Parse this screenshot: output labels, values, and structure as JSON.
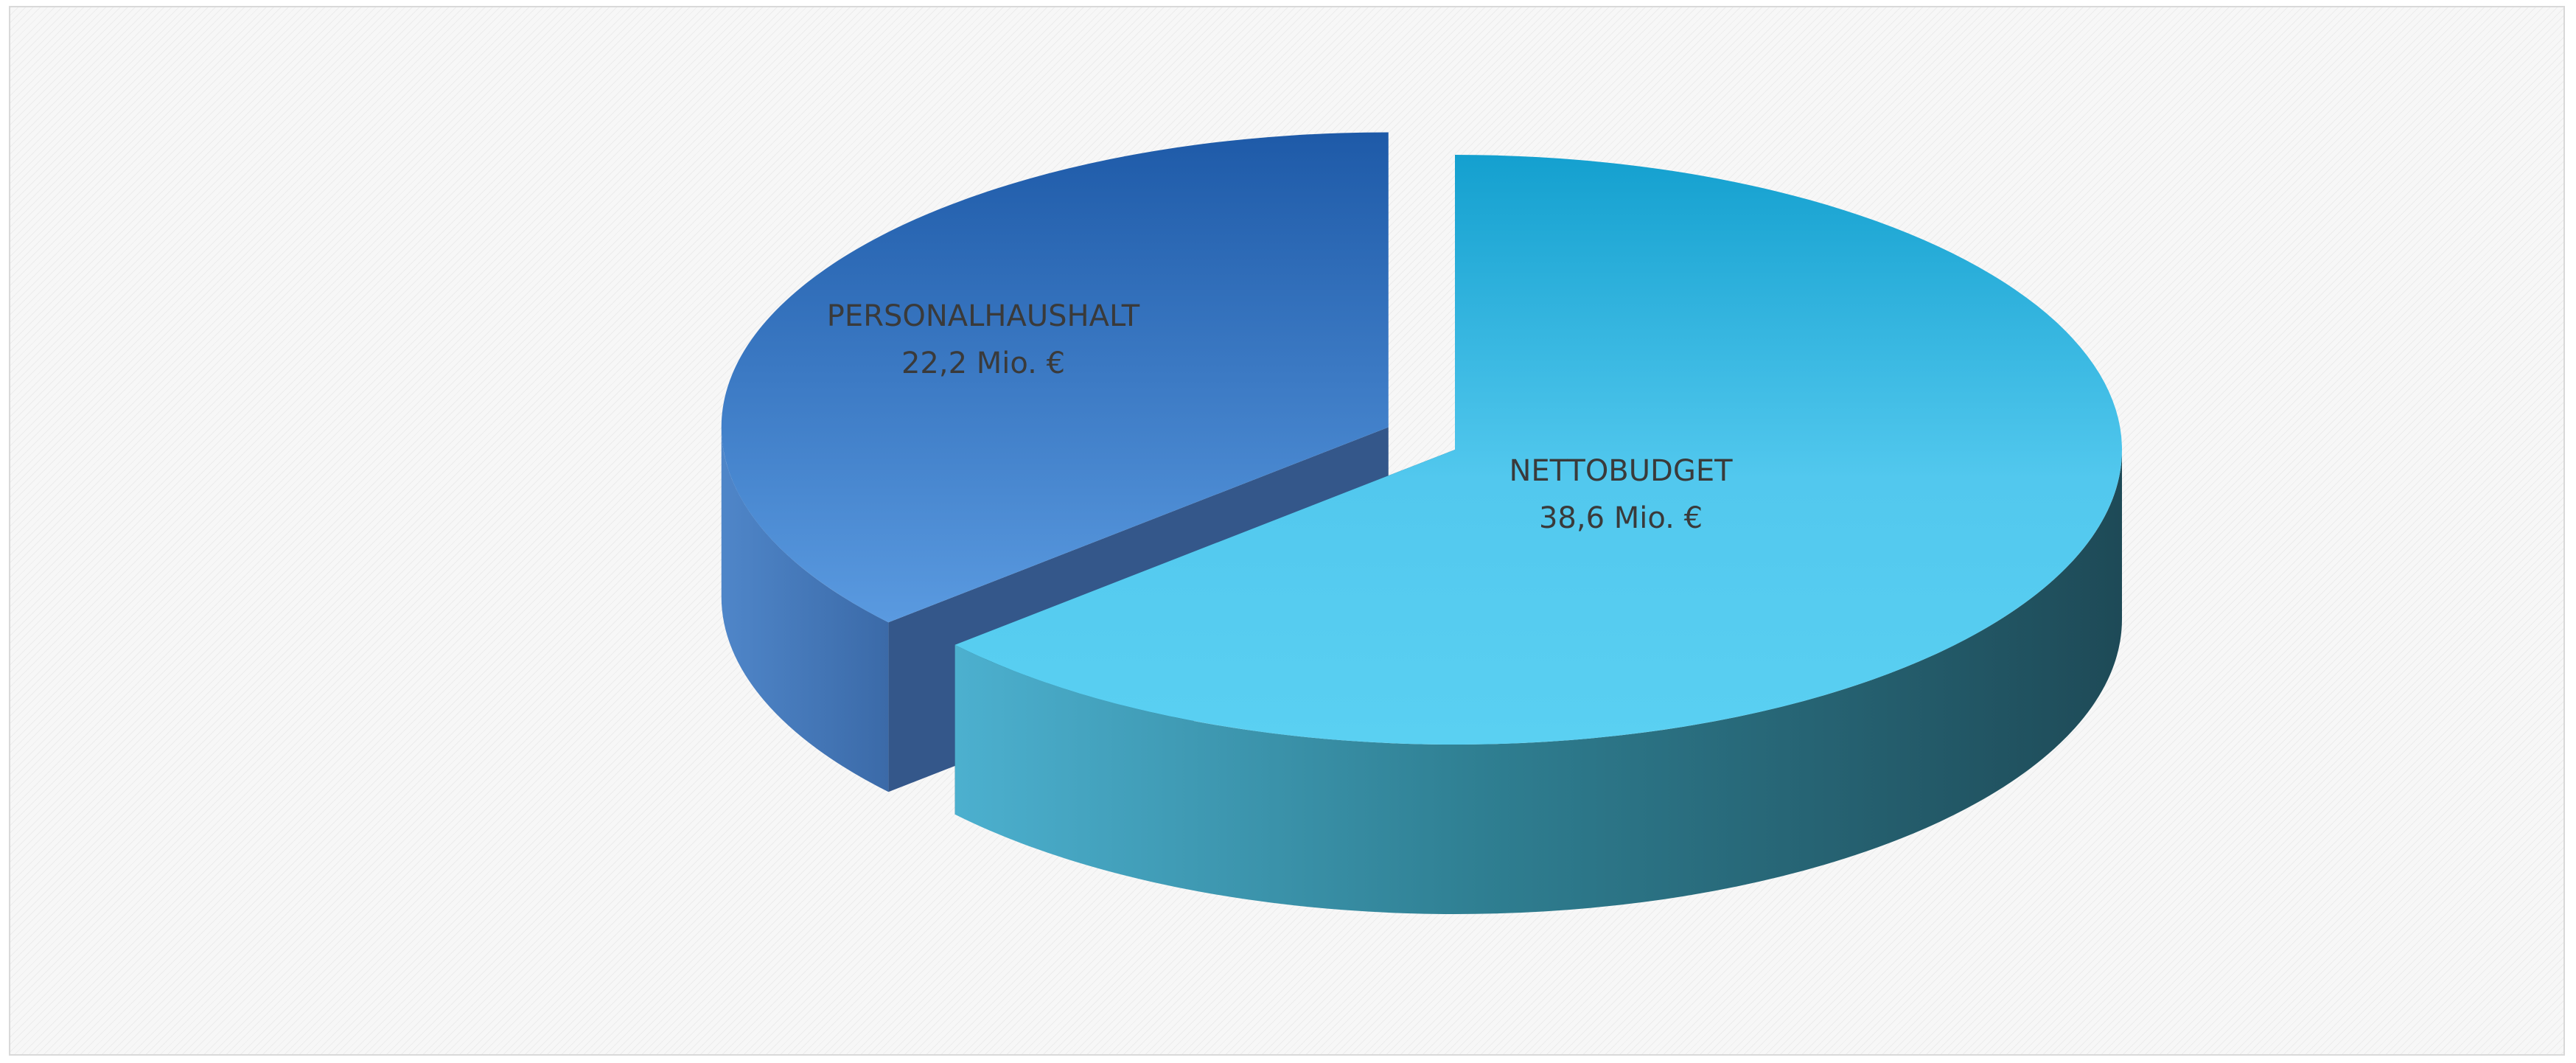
{
  "chart_data": {
    "type": "pie",
    "title": "",
    "categories": [
      "PERSONALHAUSHALT",
      "NETTOBUDGET"
    ],
    "values": [
      22.2,
      38.6
    ],
    "value_labels": [
      "22,2 Mio. €",
      "38,6 Mio. €"
    ],
    "unit": "Mio. €",
    "colors": {
      "PERSONALHAUSHALT": "#4f8fdc",
      "NETTOBUDGET": "#55cdef"
    },
    "style": "3d-exploded",
    "legend": "none"
  }
}
